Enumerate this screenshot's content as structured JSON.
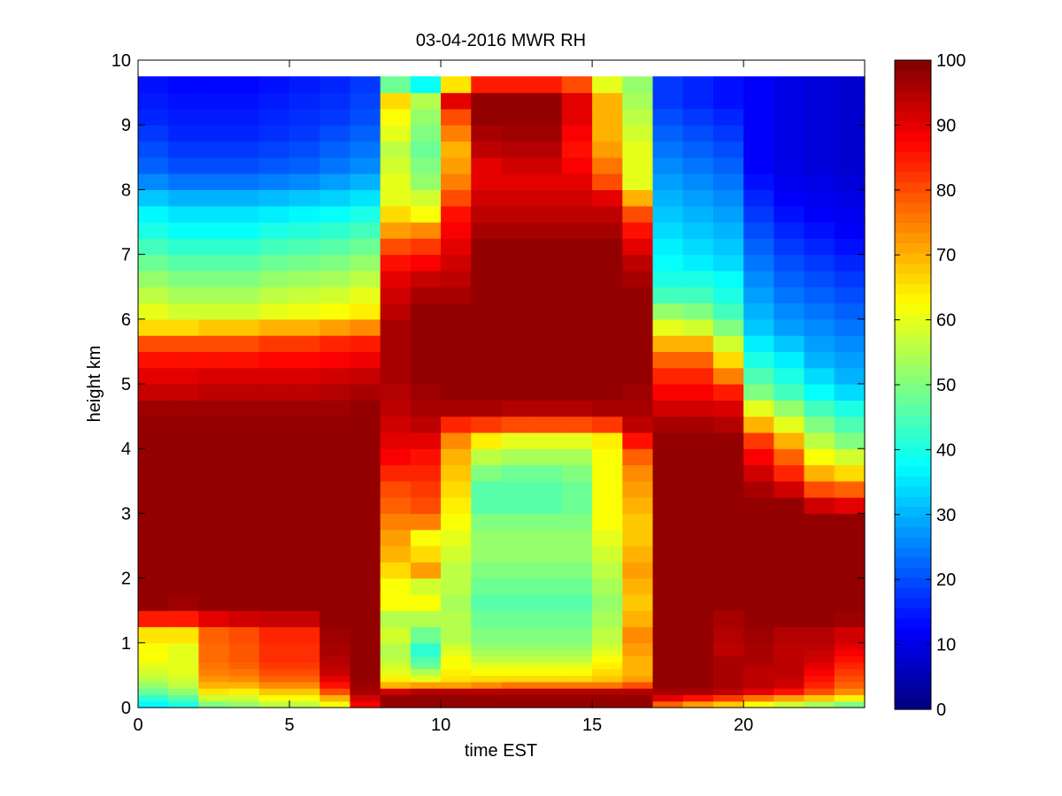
{
  "chart_data": {
    "type": "heatmap",
    "title": "03-04-2016 MWR RH",
    "xlabel": "time EST",
    "ylabel": "height km",
    "xlim": [
      0,
      24
    ],
    "ylim": [
      0,
      10
    ],
    "xticks": [
      0,
      5,
      10,
      15,
      20
    ],
    "yticks": [
      0,
      1,
      2,
      3,
      4,
      5,
      6,
      7,
      8,
      9,
      10
    ],
    "colorbar": {
      "range": [
        0,
        100
      ],
      "ticks": [
        0,
        10,
        20,
        30,
        40,
        50,
        60,
        70,
        80,
        90,
        100
      ],
      "colormap": "jet"
    },
    "time_step_hours": 1,
    "data_top_km": 9.75,
    "times": [
      0,
      1,
      2,
      3,
      4,
      5,
      6,
      7,
      8,
      9,
      10,
      11,
      12,
      13,
      14,
      15,
      16,
      17,
      18,
      19,
      20,
      21,
      22,
      23
    ],
    "heights": [
      0,
      0.1,
      0.2,
      0.3,
      0.4,
      0.5,
      0.6,
      0.7,
      0.8,
      0.9,
      1,
      1.25,
      1.5,
      1.75,
      2,
      2.25,
      2.5,
      2.75,
      3,
      3.25,
      3.5,
      3.75,
      4,
      4.25,
      4.5,
      4.75,
      5,
      5.25,
      5.5,
      5.75,
      6,
      6.25,
      6.5,
      6.75,
      7,
      7.25,
      7.5,
      7.75,
      8,
      8.25,
      8.5,
      8.75,
      9,
      9.25,
      9.5
    ],
    "rh_profiles": [
      [
        37,
        42,
        48,
        52,
        56,
        58,
        60,
        62,
        62,
        62,
        65,
        85,
        98,
        98,
        98,
        98,
        98,
        98,
        98,
        98,
        98,
        98,
        98,
        98,
        97,
        93,
        90,
        86,
        80,
        66,
        60,
        56,
        52,
        48,
        44,
        40,
        37,
        32,
        26,
        22,
        20,
        18,
        16,
        15,
        14
      ],
      [
        40,
        46,
        52,
        56,
        58,
        60,
        60,
        60,
        60,
        60,
        65,
        85,
        97,
        98,
        98,
        98,
        98,
        98,
        98,
        98,
        98,
        98,
        98,
        98,
        97,
        93,
        90,
        86,
        80,
        66,
        58,
        54,
        50,
        46,
        42,
        38,
        35,
        30,
        24,
        20,
        18,
        16,
        15,
        14,
        13
      ],
      [
        50,
        58,
        65,
        70,
        73,
        75,
        76,
        77,
        77,
        77,
        78,
        90,
        98,
        98,
        98,
        98,
        98,
        98,
        98,
        98,
        98,
        98,
        98,
        98,
        97,
        94,
        91,
        86,
        80,
        68,
        58,
        54,
        50,
        46,
        42,
        38,
        35,
        30,
        24,
        20,
        18,
        16,
        15,
        14,
        13
      ],
      [
        52,
        58,
        64,
        70,
        74,
        76,
        78,
        79,
        79,
        79,
        80,
        92,
        98,
        98,
        98,
        98,
        98,
        98,
        98,
        98,
        98,
        98,
        98,
        98,
        97,
        94,
        91,
        86,
        80,
        68,
        58,
        54,
        50,
        46,
        42,
        38,
        35,
        30,
        24,
        20,
        18,
        16,
        15,
        14,
        13
      ],
      [
        56,
        62,
        68,
        74,
        78,
        80,
        82,
        83,
        83,
        83,
        84,
        93,
        98,
        98,
        98,
        98,
        98,
        98,
        98,
        98,
        98,
        98,
        98,
        98,
        97,
        94,
        91,
        87,
        82,
        70,
        60,
        56,
        52,
        48,
        44,
        40,
        36,
        31,
        25,
        21,
        19,
        17,
        16,
        15,
        14
      ],
      [
        56,
        62,
        68,
        74,
        78,
        80,
        82,
        83,
        83,
        83,
        84,
        93,
        98,
        98,
        98,
        98,
        98,
        98,
        98,
        98,
        98,
        98,
        98,
        98,
        97,
        94,
        91,
        87,
        82,
        70,
        61,
        57,
        53,
        49,
        45,
        41,
        37,
        32,
        26,
        22,
        20,
        18,
        17,
        16,
        15
      ],
      [
        62,
        70,
        80,
        86,
        90,
        93,
        94,
        95,
        96,
        96,
        97,
        98,
        98,
        98,
        98,
        98,
        98,
        98,
        98,
        98,
        98,
        98,
        98,
        98,
        97,
        95,
        92,
        88,
        84,
        72,
        62,
        58,
        54,
        50,
        46,
        42,
        38,
        33,
        28,
        24,
        22,
        20,
        18,
        17,
        16
      ],
      [
        88,
        92,
        96,
        97,
        98,
        98,
        98,
        98,
        98,
        98,
        98,
        98,
        98,
        98,
        98,
        98,
        98,
        98,
        98,
        98,
        98,
        98,
        98,
        98,
        98,
        96,
        93,
        89,
        85,
        74,
        64,
        60,
        56,
        52,
        48,
        44,
        40,
        35,
        30,
        26,
        24,
        22,
        20,
        19,
        18
      ],
      [
        98,
        98,
        92,
        70,
        64,
        60,
        58,
        56,
        55,
        55,
        58,
        55,
        62,
        62,
        66,
        70,
        72,
        75,
        78,
        80,
        84,
        88,
        90,
        92,
        94,
        95,
        96,
        96,
        96,
        96,
        94,
        92,
        90,
        86,
        80,
        72,
        66,
        60,
        60,
        58,
        56,
        60,
        62,
        66,
        48
      ],
      [
        98,
        98,
        95,
        72,
        60,
        55,
        48,
        45,
        42,
        42,
        48,
        55,
        62,
        58,
        72,
        66,
        62,
        75,
        80,
        82,
        84,
        86,
        90,
        94,
        96,
        97,
        98,
        98,
        98,
        98,
        98,
        96,
        93,
        88,
        82,
        74,
        62,
        58,
        52,
        50,
        48,
        50,
        52,
        55,
        38
      ],
      [
        98,
        98,
        95,
        72,
        65,
        64,
        62,
        62,
        60,
        58,
        55,
        55,
        54,
        56,
        56,
        58,
        60,
        62,
        64,
        66,
        68,
        70,
        74,
        84,
        96,
        98,
        98,
        98,
        98,
        98,
        98,
        96,
        94,
        92,
        90,
        88,
        86,
        80,
        75,
        72,
        70,
        75,
        80,
        90,
        65
      ],
      [
        98,
        98,
        95,
        74,
        66,
        62,
        60,
        56,
        54,
        52,
        50,
        48,
        46,
        48,
        50,
        52,
        52,
        50,
        46,
        46,
        50,
        56,
        64,
        82,
        96,
        98,
        98,
        98,
        98,
        98,
        98,
        98,
        98,
        98,
        98,
        96,
        94,
        92,
        90,
        90,
        94,
        96,
        98,
        98,
        85
      ],
      [
        98,
        98,
        95,
        76,
        66,
        62,
        60,
        56,
        54,
        52,
        50,
        48,
        46,
        48,
        50,
        52,
        52,
        50,
        46,
        46,
        48,
        54,
        60,
        80,
        95,
        98,
        98,
        98,
        98,
        98,
        98,
        98,
        98,
        98,
        98,
        96,
        94,
        92,
        90,
        92,
        95,
        97,
        98,
        98,
        85
      ],
      [
        98,
        98,
        95,
        76,
        66,
        62,
        60,
        56,
        54,
        52,
        50,
        48,
        46,
        48,
        50,
        52,
        52,
        50,
        46,
        46,
        48,
        54,
        60,
        80,
        95,
        98,
        98,
        98,
        98,
        98,
        98,
        98,
        98,
        98,
        98,
        96,
        94,
        92,
        90,
        92,
        95,
        97,
        98,
        98,
        85
      ],
      [
        98,
        98,
        95,
        76,
        66,
        62,
        60,
        56,
        54,
        52,
        50,
        48,
        46,
        48,
        50,
        52,
        52,
        50,
        48,
        48,
        50,
        54,
        60,
        80,
        95,
        98,
        98,
        98,
        98,
        98,
        98,
        98,
        98,
        98,
        98,
        96,
        94,
        92,
        90,
        88,
        86,
        88,
        90,
        90,
        80
      ],
      [
        98,
        98,
        95,
        76,
        68,
        66,
        64,
        62,
        60,
        58,
        56,
        54,
        52,
        54,
        56,
        58,
        60,
        62,
        62,
        62,
        62,
        62,
        64,
        82,
        96,
        98,
        98,
        98,
        98,
        98,
        98,
        98,
        98,
        98,
        98,
        96,
        94,
        90,
        80,
        76,
        72,
        70,
        70,
        70,
        60
      ],
      [
        98,
        98,
        95,
        80,
        72,
        70,
        70,
        70,
        72,
        72,
        74,
        70,
        68,
        70,
        72,
        70,
        68,
        68,
        70,
        72,
        74,
        78,
        86,
        94,
        96,
        97,
        98,
        98,
        98,
        98,
        98,
        98,
        96,
        94,
        90,
        86,
        80,
        70,
        60,
        60,
        60,
        58,
        56,
        54,
        52
      ],
      [
        78,
        90,
        96,
        98,
        98,
        98,
        98,
        98,
        98,
        98,
        98,
        98,
        98,
        98,
        98,
        98,
        98,
        98,
        98,
        98,
        98,
        98,
        98,
        96,
        92,
        88,
        84,
        78,
        70,
        60,
        52,
        44,
        40,
        38,
        36,
        34,
        32,
        30,
        28,
        26,
        24,
        22,
        20,
        18,
        18
      ],
      [
        72,
        86,
        96,
        98,
        98,
        98,
        98,
        98,
        98,
        98,
        98,
        98,
        98,
        98,
        98,
        98,
        98,
        98,
        98,
        98,
        98,
        98,
        98,
        96,
        92,
        88,
        84,
        78,
        70,
        58,
        50,
        44,
        40,
        36,
        34,
        32,
        30,
        28,
        26,
        24,
        22,
        20,
        18,
        16,
        16
      ],
      [
        68,
        82,
        94,
        96,
        96,
        96,
        96,
        96,
        94,
        94,
        95,
        96,
        98,
        98,
        98,
        98,
        98,
        98,
        98,
        98,
        98,
        98,
        98,
        95,
        91,
        85,
        75,
        66,
        58,
        50,
        44,
        40,
        38,
        34,
        32,
        30,
        28,
        26,
        24,
        22,
        20,
        18,
        16,
        14,
        14
      ],
      [
        62,
        76,
        90,
        94,
        94,
        94,
        95,
        96,
        96,
        96,
        97,
        98,
        98,
        98,
        98,
        98,
        98,
        98,
        98,
        96,
        92,
        88,
        82,
        70,
        60,
        50,
        45,
        40,
        36,
        32,
        30,
        28,
        26,
        24,
        22,
        20,
        18,
        16,
        14,
        12,
        12,
        12,
        12,
        12,
        12
      ],
      [
        58,
        72,
        86,
        92,
        93,
        94,
        94,
        94,
        94,
        94,
        95,
        98,
        98,
        98,
        98,
        98,
        98,
        98,
        98,
        92,
        84,
        78,
        70,
        60,
        52,
        44,
        40,
        36,
        32,
        28,
        26,
        24,
        22,
        20,
        18,
        16,
        14,
        12,
        11,
        10,
        10,
        10,
        10,
        10,
        10
      ],
      [
        54,
        68,
        80,
        84,
        86,
        88,
        90,
        92,
        93,
        94,
        95,
        98,
        98,
        98,
        98,
        98,
        98,
        98,
        92,
        80,
        70,
        62,
        56,
        50,
        44,
        38,
        34,
        30,
        28,
        26,
        24,
        22,
        20,
        18,
        16,
        14,
        12,
        11,
        10,
        9,
        9,
        9,
        9,
        9,
        9
      ],
      [
        50,
        64,
        74,
        78,
        80,
        82,
        84,
        86,
        88,
        90,
        92,
        97,
        98,
        98,
        98,
        98,
        98,
        98,
        90,
        78,
        66,
        58,
        50,
        45,
        40,
        34,
        30,
        28,
        26,
        24,
        22,
        20,
        18,
        16,
        14,
        12,
        11,
        10,
        9,
        8,
        8,
        8,
        8,
        8,
        8
      ]
    ]
  }
}
